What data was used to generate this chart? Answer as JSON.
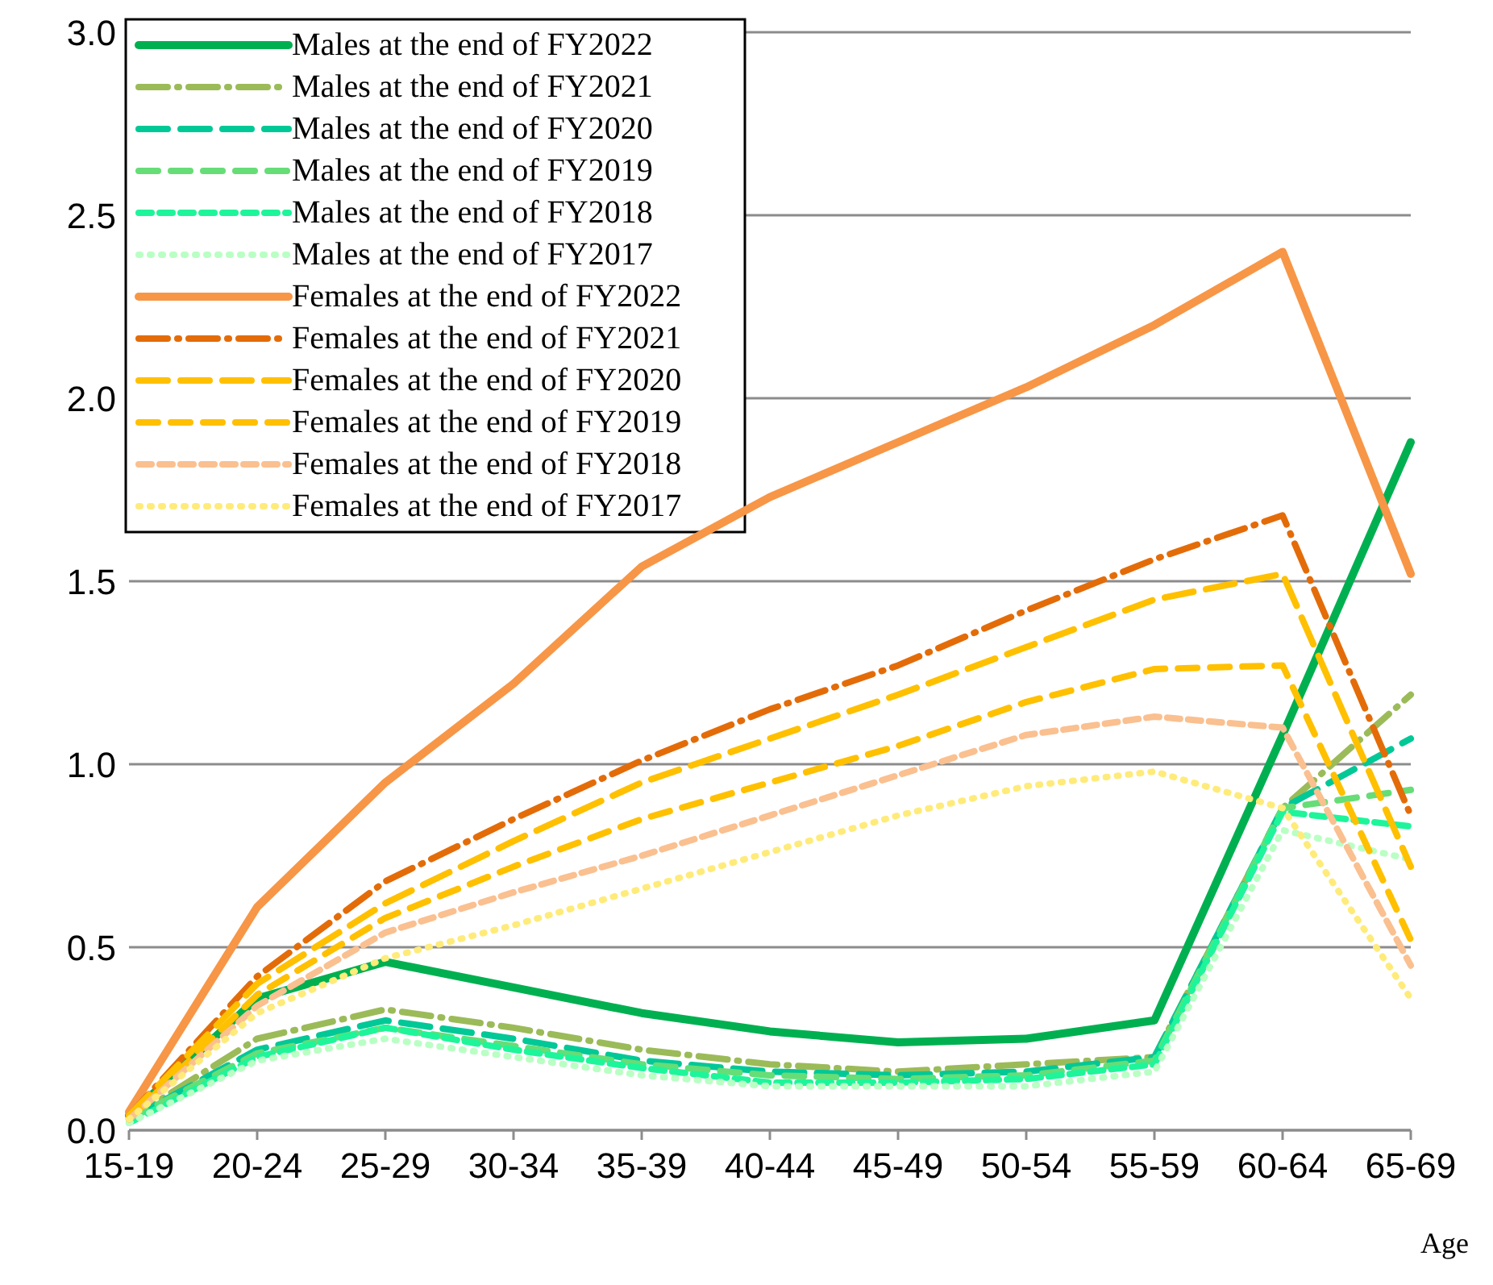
{
  "chart_data": {
    "type": "line",
    "xlabel": "Age",
    "categories": [
      "15-19",
      "20-24",
      "25-29",
      "30-34",
      "35-39",
      "40-44",
      "45-49",
      "50-54",
      "55-59",
      "60-64",
      "65-69"
    ],
    "ylim": [
      0,
      3
    ],
    "yticks": [
      {
        "value": 0,
        "label": "0.0"
      },
      {
        "value": 0.5,
        "label": "0.5"
      },
      {
        "value": 1,
        "label": "1.0"
      },
      {
        "value": 1.5,
        "label": "1.5"
      },
      {
        "value": 2,
        "label": "2.0"
      },
      {
        "value": 2.5,
        "label": "2.5"
      },
      {
        "value": 3,
        "label": "3.0"
      }
    ],
    "grid": "y",
    "legend": "top left",
    "marker": "none",
    "series": [
      {
        "name": "Males at the end of FY2022",
        "color": "#00b050",
        "line_style": "solid",
        "values": [
          0.04,
          0.36,
          0.46,
          0.39,
          0.32,
          0.27,
          0.24,
          0.25,
          0.3,
          1.08,
          1.88
        ]
      },
      {
        "name": "Males at the end of FY2021",
        "color": "#9bbb59",
        "line_style": "dashed",
        "values": [
          0.03,
          0.25,
          0.33,
          0.28,
          0.22,
          0.18,
          0.16,
          0.18,
          0.2,
          0.88,
          1.19
        ]
      },
      {
        "name": "Males at the end of FY2020",
        "color": "#00c896",
        "line_style": "dashed",
        "values": [
          0.03,
          0.22,
          0.3,
          0.25,
          0.19,
          0.16,
          0.15,
          0.16,
          0.2,
          0.88,
          1.07
        ]
      },
      {
        "name": "Males at the end of FY2019",
        "color": "#66dd77",
        "line_style": "dashed",
        "values": [
          0.03,
          0.21,
          0.28,
          0.23,
          0.18,
          0.15,
          0.14,
          0.15,
          0.19,
          0.88,
          0.93
        ]
      },
      {
        "name": "Males at the end of FY2018",
        "color": "#1ef59a",
        "line_style": "dashed",
        "values": [
          0.02,
          0.2,
          0.28,
          0.22,
          0.17,
          0.13,
          0.13,
          0.14,
          0.18,
          0.87,
          0.83
        ]
      },
      {
        "name": "Males at the end of FY2017",
        "color": "#b9ffc4",
        "line_style": "dotted",
        "values": [
          0.02,
          0.19,
          0.25,
          0.2,
          0.15,
          0.12,
          0.12,
          0.12,
          0.16,
          0.82,
          0.74
        ]
      },
      {
        "name": "Females at the end of FY2022",
        "color": "#f79646",
        "line_style": "solid",
        "values": [
          0.05,
          0.61,
          0.95,
          1.22,
          1.54,
          1.73,
          1.88,
          2.03,
          2.2,
          2.4,
          1.52
        ]
      },
      {
        "name": "Females at the end of FY2021",
        "color": "#e36c09",
        "line_style": "dashed",
        "values": [
          0.04,
          0.42,
          0.68,
          0.85,
          1.01,
          1.15,
          1.27,
          1.42,
          1.56,
          1.68,
          0.86
        ]
      },
      {
        "name": "Females at the end of FY2020",
        "color": "#ffc000",
        "line_style": "dashed",
        "values": [
          0.04,
          0.4,
          0.62,
          0.79,
          0.95,
          1.07,
          1.19,
          1.32,
          1.45,
          1.52,
          0.72
        ]
      },
      {
        "name": "Females at the end of FY2019",
        "color": "#ffc000",
        "line_style": "dashed",
        "values": [
          0.03,
          0.37,
          0.58,
          0.72,
          0.85,
          0.95,
          1.05,
          1.17,
          1.26,
          1.27,
          0.52
        ]
      },
      {
        "name": "Females at the end of FY2018",
        "color": "#fac090",
        "line_style": "dashed",
        "values": [
          0.03,
          0.34,
          0.54,
          0.65,
          0.75,
          0.86,
          0.97,
          1.08,
          1.13,
          1.1,
          0.45
        ]
      },
      {
        "name": "Females at the end of FY2017",
        "color": "#ffeb7a",
        "line_style": "dotted",
        "values": [
          0.03,
          0.32,
          0.47,
          0.56,
          0.66,
          0.76,
          0.86,
          0.94,
          0.98,
          0.88,
          0.36
        ]
      }
    ]
  }
}
